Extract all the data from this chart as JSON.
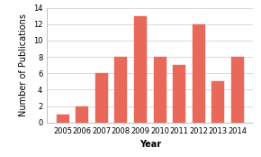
{
  "years": [
    "2005",
    "2006",
    "2007",
    "2008",
    "2009",
    "2010",
    "2011",
    "2012",
    "2013",
    "2014"
  ],
  "values": [
    1,
    2,
    6,
    8,
    13,
    8,
    7,
    12,
    5,
    8
  ],
  "bar_color": "#e8695a",
  "bar_edgecolor": "#e8695a",
  "title": "",
  "xlabel": "Year",
  "ylabel": "Number of Publications",
  "ylim": [
    0,
    14
  ],
  "yticks": [
    0,
    2,
    4,
    6,
    8,
    10,
    12,
    14
  ],
  "grid_color": "#cccccc",
  "background_color": "#ffffff",
  "xlabel_fontsize": 7,
  "ylabel_fontsize": 7,
  "tick_fontsize": 6,
  "bar_width": 0.65
}
